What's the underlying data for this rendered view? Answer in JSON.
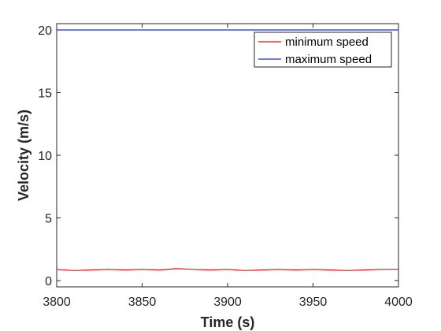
{
  "chart_data": {
    "type": "line",
    "title": "",
    "xlabel": "Time (s)",
    "ylabel": "Velocity (m/s)",
    "xlim": [
      3800,
      4000
    ],
    "ylim": [
      -0.5,
      20.5
    ],
    "xticks": [
      3800,
      3850,
      3900,
      3950,
      4000
    ],
    "xtick_labels": [
      "3800",
      "3850",
      "3900",
      "3950",
      "4000"
    ],
    "yticks": [
      0,
      5,
      10,
      15,
      20
    ],
    "ytick_labels": [
      "0",
      "5",
      "10",
      "15",
      "20"
    ],
    "grid": false,
    "legend_position": "top-right",
    "x": [
      3800,
      3810,
      3820,
      3830,
      3840,
      3850,
      3860,
      3870,
      3880,
      3890,
      3900,
      3910,
      3920,
      3930,
      3940,
      3950,
      3960,
      3970,
      3980,
      3990,
      4000
    ],
    "series": [
      {
        "name": "minimum speed",
        "color": "#e8100f",
        "values": [
          0.9,
          0.8,
          0.85,
          0.9,
          0.85,
          0.9,
          0.85,
          0.95,
          0.9,
          0.85,
          0.9,
          0.8,
          0.85,
          0.9,
          0.85,
          0.9,
          0.85,
          0.8,
          0.85,
          0.9,
          0.9
        ]
      },
      {
        "name": "maximum speed",
        "color": "#1f2fd1",
        "values": [
          20,
          20,
          20,
          20,
          20,
          20,
          20,
          20,
          20,
          20,
          20,
          20,
          20,
          20,
          20,
          20,
          20,
          20,
          20,
          20,
          20
        ]
      }
    ]
  }
}
